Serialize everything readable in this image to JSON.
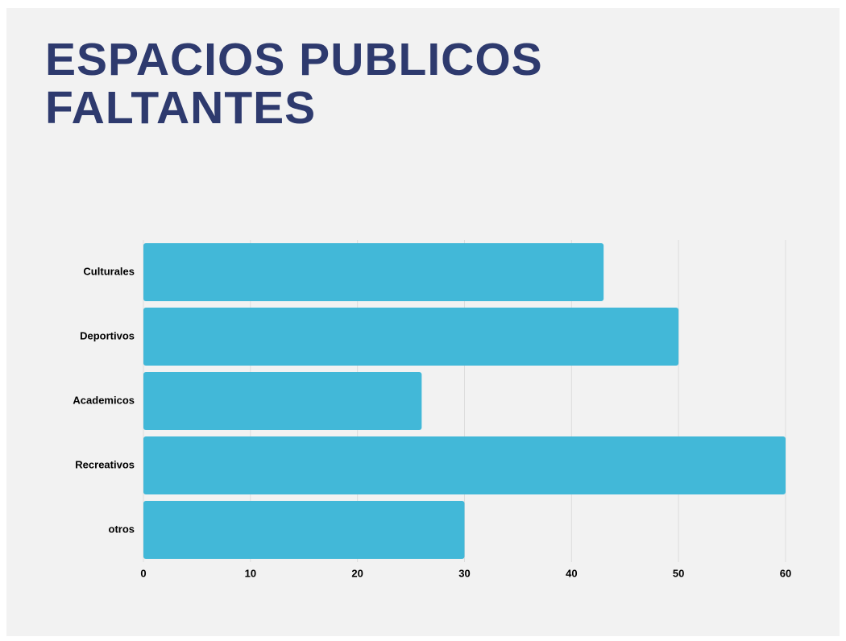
{
  "chart_data": {
    "type": "bar",
    "title": "ESPACIOS PUBLICOS FALTANTES",
    "categories": [
      "Culturales",
      "Deportivos",
      "Academicos",
      "Recreativos",
      "otros"
    ],
    "values": [
      43,
      50,
      26,
      60,
      30
    ],
    "color": "#42b8d8",
    "xlim": [
      0,
      60
    ],
    "xticks": [
      0,
      10,
      20,
      30,
      40,
      50,
      60
    ],
    "grid": true
  }
}
